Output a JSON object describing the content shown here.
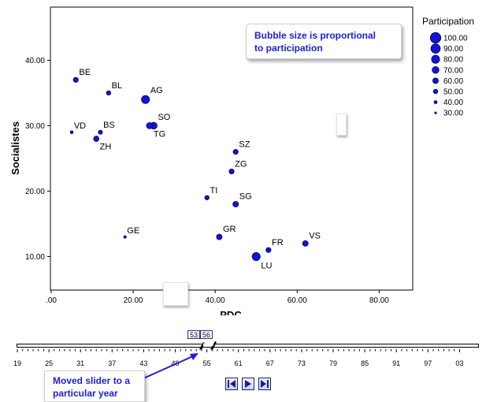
{
  "chart_data": {
    "type": "scatter",
    "title": "",
    "xlabel": "PDC",
    "ylabel": "Socialistes",
    "xlim": [
      0,
      88
    ],
    "ylim": [
      5,
      48
    ],
    "xticks": [
      0,
      20,
      40,
      60,
      80
    ],
    "xtick_labels": [
      ".00",
      "20.00",
      "40.00",
      "60.00",
      "80.00"
    ],
    "yticks": [
      10,
      20,
      30,
      40
    ],
    "ytick_labels": [
      "10.00",
      "20.00",
      "30.00",
      "40.00"
    ],
    "size_variable": "Participation",
    "points": [
      {
        "label": "BE",
        "x": 6,
        "y": 37,
        "size": 55
      },
      {
        "label": "BL",
        "x": 14,
        "y": 35,
        "size": 50
      },
      {
        "label": "AG",
        "x": 23,
        "y": 34,
        "size": 80
      },
      {
        "label": "VD",
        "x": 5,
        "y": 29,
        "size": 38
      },
      {
        "label": "BS",
        "x": 12,
        "y": 29,
        "size": 48
      },
      {
        "label": "ZH",
        "x": 11,
        "y": 28,
        "size": 58
      },
      {
        "label": "SO",
        "x": 25,
        "y": 30,
        "size": 70
      },
      {
        "label": "TG",
        "x": 24,
        "y": 30,
        "size": 65
      },
      {
        "label": "SZ",
        "x": 45,
        "y": 26,
        "size": 55
      },
      {
        "label": "ZG",
        "x": 44,
        "y": 23,
        "size": 55
      },
      {
        "label": "TI",
        "x": 38,
        "y": 19,
        "size": 50
      },
      {
        "label": "SG",
        "x": 45,
        "y": 18,
        "size": 60
      },
      {
        "label": "GE",
        "x": 18,
        "y": 13,
        "size": 35
      },
      {
        "label": "GR",
        "x": 41,
        "y": 13,
        "size": 60
      },
      {
        "label": "FR",
        "x": 53,
        "y": 11,
        "size": 55
      },
      {
        "label": "LU",
        "x": 50,
        "y": 10,
        "size": 80
      },
      {
        "label": "VS",
        "x": 62,
        "y": 12,
        "size": 60
      }
    ],
    "legend": {
      "title": "Participation",
      "placement": "right",
      "items": [
        {
          "label": "100.00",
          "value": 100
        },
        {
          "label": "90.00",
          "value": 90
        },
        {
          "label": "80.00",
          "value": 80
        },
        {
          "label": "70.00",
          "value": 70
        },
        {
          "label": "60.00",
          "value": 60
        },
        {
          "label": "50.00",
          "value": 50
        },
        {
          "label": "40.00",
          "value": 40
        },
        {
          "label": "30.00",
          "value": 30
        }
      ]
    },
    "grid": false
  },
  "colors": {
    "bubble": "#1414d4",
    "bubble_stroke": "#000066",
    "annotation_text": "#1c1ce0",
    "timeline_marker": "#2a2aa0"
  },
  "callout": {
    "line1": "Bubble size is proportional",
    "line2": "to participation"
  },
  "timeline": {
    "year_labels": [
      "19",
      "25",
      "31",
      "37",
      "43",
      "49",
      "55",
      "61",
      "67",
      "73",
      "79",
      "85",
      "91",
      "97",
      "03"
    ],
    "selected_start": "53",
    "selected_end": "56",
    "annotation_line1": "Moved slider to a",
    "annotation_line2": "particular year",
    "buttons": [
      "step-back-icon",
      "play-icon",
      "step-forward-icon"
    ]
  }
}
